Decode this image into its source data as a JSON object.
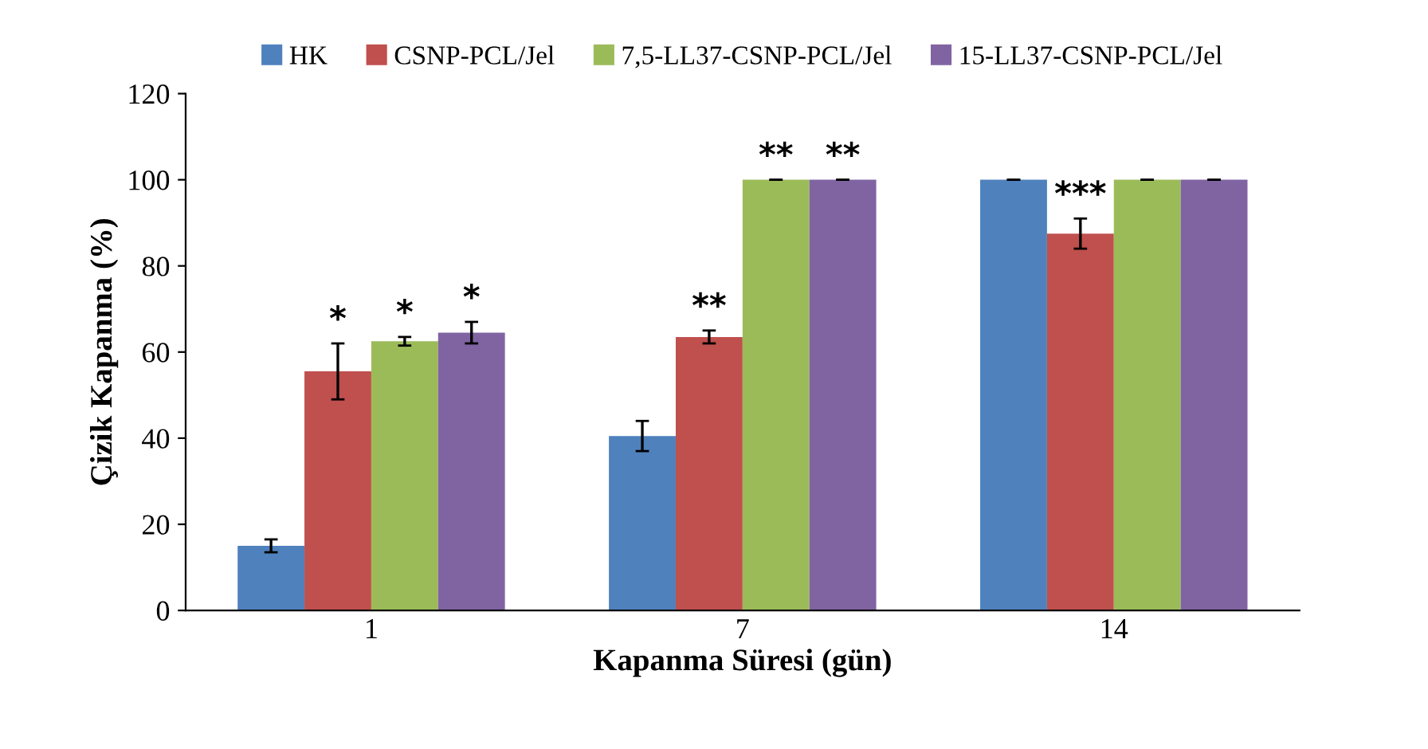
{
  "chart_data": {
    "type": "bar",
    "xlabel": "Kapanma Süresi (gün)",
    "ylabel": "Çizik Kapanma (%)",
    "categories": [
      "1",
      "7",
      "14"
    ],
    "series": [
      {
        "name": "HK",
        "color": "#4f81bd",
        "values": [
          15,
          40.5,
          100
        ],
        "errors": [
          1.5,
          3.5,
          0
        ],
        "value_labels": [
          null,
          null,
          null
        ]
      },
      {
        "name": "CSNP-PCL/Jel",
        "color": "#c0504d",
        "values": [
          55.5,
          63.5,
          87.5
        ],
        "errors": [
          6.5,
          1.5,
          3.5
        ],
        "value_labels": [
          "*",
          "**",
          "***"
        ]
      },
      {
        "name": "7,5-LL37-CSNP-PCL/Jel",
        "color": "#9bbb59",
        "values": [
          62.5,
          100,
          100
        ],
        "errors": [
          1,
          0,
          0
        ],
        "value_labels": [
          "*",
          "**",
          null
        ]
      },
      {
        "name": "15-LL37-CSNP-PCL/Jel",
        "color": "#8064a2",
        "values": [
          64.5,
          100,
          100
        ],
        "errors": [
          2.5,
          0,
          0
        ],
        "value_labels": [
          "*",
          "**",
          null
        ]
      }
    ],
    "ylim": [
      0,
      120
    ],
    "yticks": [
      0,
      20,
      40,
      60,
      80,
      100,
      120
    ],
    "grid": false,
    "legend": "top"
  }
}
